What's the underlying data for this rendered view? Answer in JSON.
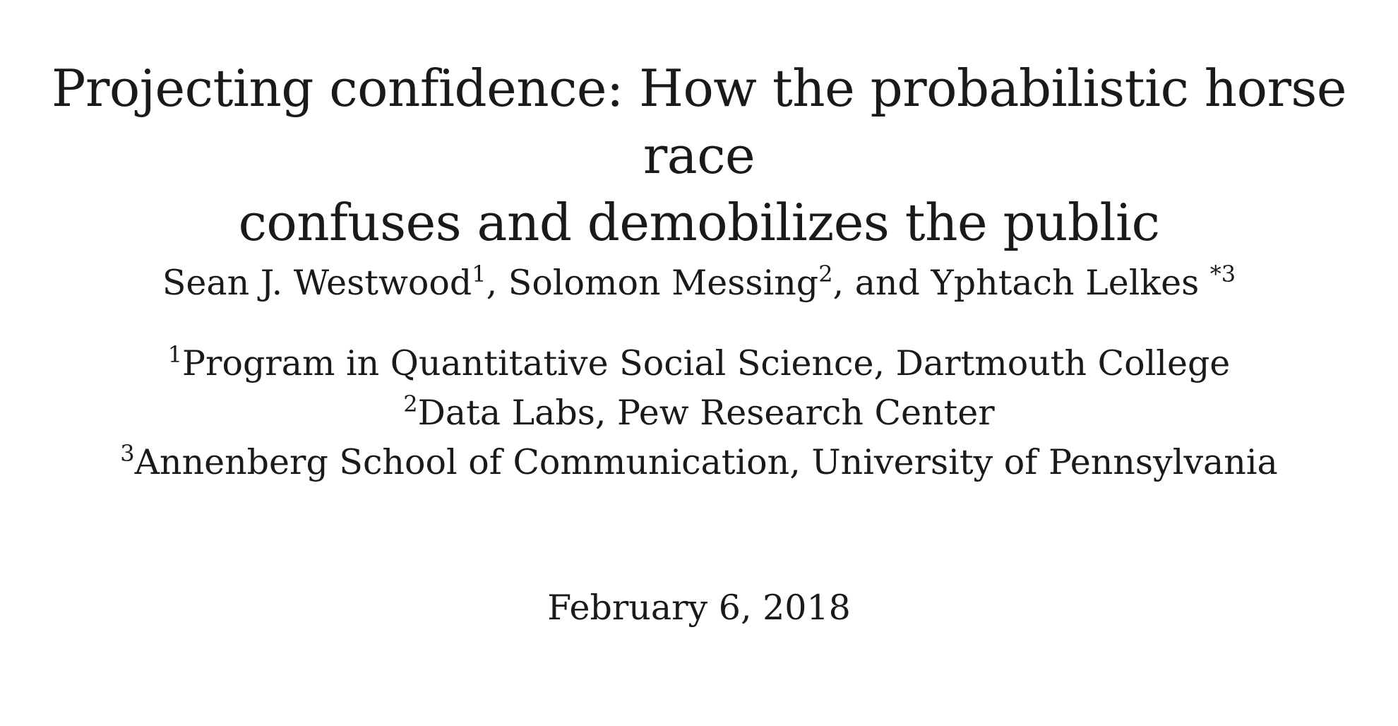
{
  "paper": {
    "title_line1": "Projecting confidence: How the probabilistic horse race",
    "title_line2": "confuses and demobilizes the public",
    "authors": [
      {
        "name": "Sean J. Westwood",
        "marker": "1",
        "sep": ", "
      },
      {
        "name": "Solomon Messing",
        "marker": "2",
        "sep": ", and "
      },
      {
        "name": "Yphtach Lelkes ",
        "marker": "*3",
        "sep": ""
      }
    ],
    "affiliations": [
      {
        "marker": "1",
        "text": "Program in Quantitative Social Science, Dartmouth College"
      },
      {
        "marker": "2",
        "text": "Data Labs, Pew Research Center"
      },
      {
        "marker": "3",
        "text": "Annenberg School of Communication, University of Pennsylvania"
      }
    ],
    "date": "February 6, 2018"
  }
}
